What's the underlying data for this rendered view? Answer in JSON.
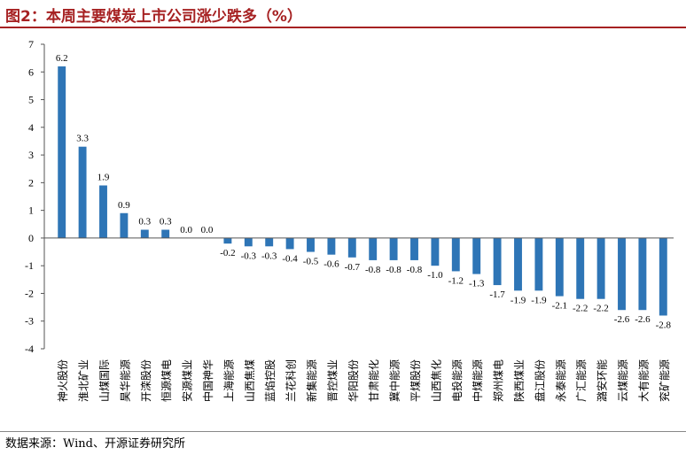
{
  "title": "图2：本周主要煤炭上市公司涨少跌多（%）",
  "source": "数据来源：Wind、开源证券研究所",
  "chart_data": {
    "type": "bar",
    "title": "图2：本周主要煤炭上市公司涨少跌多（%）",
    "xlabel": "",
    "ylabel": "",
    "ylim": [
      -4,
      7
    ],
    "yticks": [
      -4,
      -3,
      -2,
      -1,
      0,
      1,
      2,
      3,
      4,
      5,
      6,
      7
    ],
    "grid": false,
    "bar_color": "#2e75b6",
    "categories": [
      "神火股份",
      "淮北矿业",
      "山煤国际",
      "昊华能源",
      "开滦股份",
      "恒源煤电",
      "安源煤业",
      "中国神华",
      "上海能源",
      "山西焦煤",
      "蓝焰控股",
      "兰花科创",
      "新集能源",
      "晋控煤业",
      "华阳股份",
      "甘肃能化",
      "冀中能源",
      "平煤股份",
      "山西焦化",
      "电投能源",
      "中煤能源",
      "郑州煤电",
      "陕西煤业",
      "盘江股份",
      "永泰能源",
      "广汇能源",
      "潞安环能",
      "云煤能源",
      "大有能源",
      "兖矿能源"
    ],
    "values": [
      6.2,
      3.3,
      1.9,
      0.9,
      0.3,
      0.3,
      0.0,
      0.0,
      -0.2,
      -0.3,
      -0.3,
      -0.4,
      -0.5,
      -0.6,
      -0.7,
      -0.8,
      -0.8,
      -0.8,
      -1.0,
      -1.2,
      -1.3,
      -1.7,
      -1.9,
      -1.9,
      -2.1,
      -2.2,
      -2.2,
      -2.6,
      -2.6,
      -2.8
    ],
    "labels": [
      "6.2",
      "3.3",
      "1.9",
      "0.9",
      "0.3",
      "0.3",
      "0.0",
      "0.0",
      "-0.2",
      "-0.3",
      "-0.3",
      "-0.4",
      "-0.5",
      "-0.6",
      "-0.7",
      "-0.8",
      "-0.8",
      "-0.8",
      "-1.0",
      "-1.2",
      "-1.3",
      "-1.7",
      "-1.9",
      "-1.9",
      "-2.1",
      "-2.2",
      "-2.2",
      "-2.6",
      "-2.6",
      "-2.8"
    ]
  }
}
